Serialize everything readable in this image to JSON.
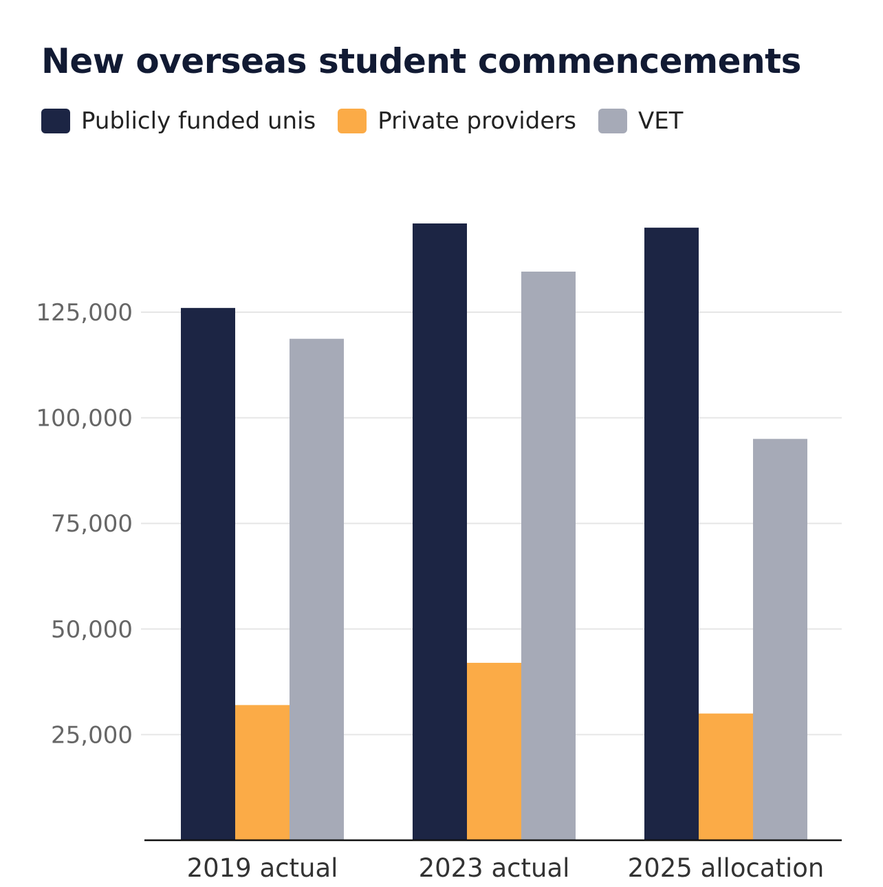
{
  "chart_data": {
    "type": "bar",
    "title": "New overseas student commencements",
    "categories": [
      "2019 actual",
      "2023 actual",
      "2025 allocation"
    ],
    "series": [
      {
        "name": "Publicly funded unis",
        "color": "#1c2544",
        "values": [
          126000,
          146000,
          145000
        ]
      },
      {
        "name": "Private providers",
        "color": "#fbab47",
        "values": [
          32000,
          42000,
          30000
        ]
      },
      {
        "name": "VET",
        "color": "#a6aab7",
        "values": [
          118700,
          134600,
          95000
        ]
      }
    ],
    "yticks": [
      25000,
      50000,
      75000,
      100000,
      125000
    ],
    "ytick_labels": [
      "25,000",
      "50,000",
      "75,000",
      "100,000",
      "125,000"
    ],
    "ylim": [
      0,
      150000
    ],
    "xlabel": "",
    "ylabel": "",
    "grid": true,
    "legend_position": "top-left"
  }
}
